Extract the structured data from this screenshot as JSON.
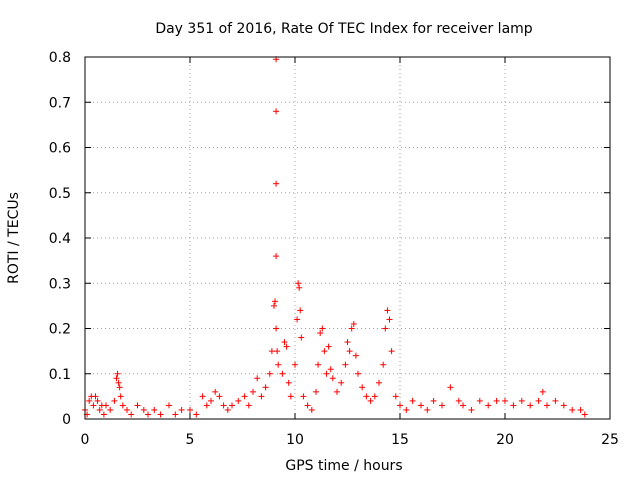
{
  "chart_data": {
    "type": "scatter",
    "title": "Day 351 of 2016, Rate Of TEC Index for receiver lamp",
    "xlabel": "GPS time / hours",
    "ylabel": "ROTI / TECUs",
    "xlim": [
      0,
      25
    ],
    "ylim": [
      0,
      0.8
    ],
    "xticks": [
      0,
      5,
      10,
      15,
      20,
      25
    ],
    "yticks": [
      0,
      0.1,
      0.2,
      0.3,
      0.4,
      0.5,
      0.6,
      0.7,
      0.8
    ],
    "xtick_labels": [
      "0",
      "5",
      "10",
      "15",
      "20",
      "25"
    ],
    "ytick_labels": [
      "0",
      "0.1",
      "0.2",
      "0.3",
      "0.4",
      "0.5",
      "0.6",
      "0.7",
      "0.8"
    ],
    "grid": true,
    "marker": "+",
    "color": "#ff0000",
    "series": [
      {
        "name": "ROTI",
        "x": [
          0.0,
          0.1,
          0.2,
          0.3,
          0.4,
          0.5,
          0.6,
          0.7,
          0.8,
          0.9,
          1.0,
          1.2,
          1.4,
          1.5,
          1.55,
          1.6,
          1.65,
          1.7,
          1.8,
          2.0,
          2.2,
          2.5,
          2.8,
          3.0,
          3.3,
          3.6,
          4.0,
          4.3,
          4.6,
          5.0,
          5.3,
          5.6,
          5.8,
          6.0,
          6.2,
          6.4,
          6.6,
          6.8,
          7.0,
          7.3,
          7.6,
          7.8,
          8.0,
          8.2,
          8.4,
          8.6,
          8.8,
          8.9,
          9.0,
          9.05,
          9.1,
          9.1,
          9.1,
          9.1,
          9.1,
          9.15,
          9.2,
          9.4,
          9.5,
          9.6,
          9.7,
          9.8,
          10.0,
          10.1,
          10.15,
          10.2,
          10.25,
          10.3,
          10.4,
          10.6,
          10.8,
          11.0,
          11.1,
          11.2,
          11.3,
          11.4,
          11.5,
          11.6,
          11.7,
          11.8,
          12.0,
          12.2,
          12.4,
          12.5,
          12.6,
          12.7,
          12.8,
          12.9,
          13.0,
          13.2,
          13.4,
          13.6,
          13.8,
          14.0,
          14.2,
          14.3,
          14.4,
          14.5,
          14.6,
          14.8,
          15.0,
          15.3,
          15.6,
          16.0,
          16.3,
          16.6,
          17.0,
          17.4,
          17.8,
          18.0,
          18.4,
          18.8,
          19.2,
          19.6,
          20.0,
          20.4,
          20.8,
          21.2,
          21.6,
          21.8,
          22.0,
          22.4,
          22.8,
          23.2,
          23.6,
          23.8
        ],
        "y": [
          0.02,
          0.01,
          0.04,
          0.05,
          0.03,
          0.05,
          0.04,
          0.02,
          0.03,
          0.01,
          0.03,
          0.02,
          0.04,
          0.09,
          0.1,
          0.08,
          0.07,
          0.05,
          0.03,
          0.02,
          0.01,
          0.03,
          0.02,
          0.01,
          0.02,
          0.01,
          0.03,
          0.01,
          0.02,
          0.02,
          0.01,
          0.05,
          0.03,
          0.04,
          0.06,
          0.05,
          0.03,
          0.02,
          0.03,
          0.04,
          0.05,
          0.03,
          0.06,
          0.09,
          0.05,
          0.07,
          0.1,
          0.15,
          0.25,
          0.26,
          0.36,
          0.52,
          0.68,
          0.795,
          0.2,
          0.15,
          0.12,
          0.1,
          0.17,
          0.16,
          0.08,
          0.05,
          0.12,
          0.22,
          0.3,
          0.29,
          0.24,
          0.18,
          0.05,
          0.03,
          0.02,
          0.06,
          0.12,
          0.19,
          0.2,
          0.15,
          0.1,
          0.16,
          0.11,
          0.09,
          0.06,
          0.08,
          0.12,
          0.17,
          0.15,
          0.2,
          0.21,
          0.14,
          0.1,
          0.07,
          0.05,
          0.04,
          0.05,
          0.08,
          0.12,
          0.2,
          0.24,
          0.22,
          0.15,
          0.05,
          0.03,
          0.02,
          0.04,
          0.03,
          0.02,
          0.04,
          0.03,
          0.07,
          0.04,
          0.03,
          0.02,
          0.04,
          0.03,
          0.04,
          0.04,
          0.03,
          0.04,
          0.03,
          0.04,
          0.06,
          0.03,
          0.04,
          0.03,
          0.02,
          0.02,
          0.01
        ]
      }
    ]
  }
}
